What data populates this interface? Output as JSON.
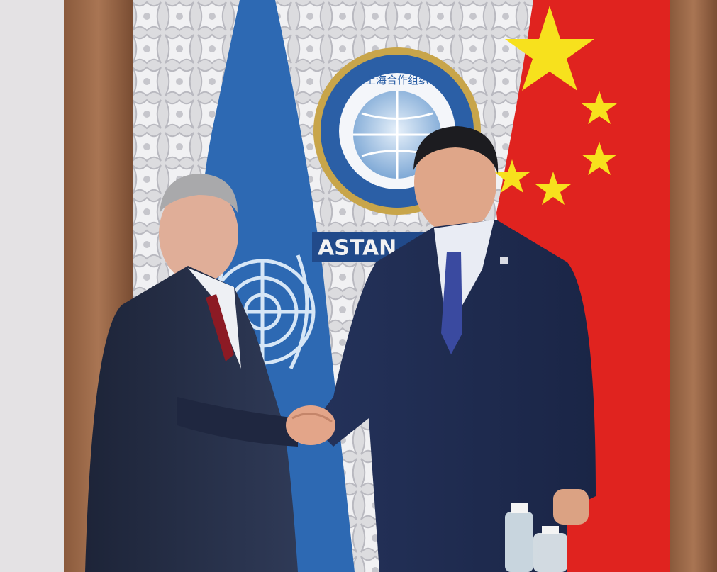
{
  "emblem": {
    "text": "上海合作组织"
  },
  "sign": {
    "text": "ASTAN"
  }
}
